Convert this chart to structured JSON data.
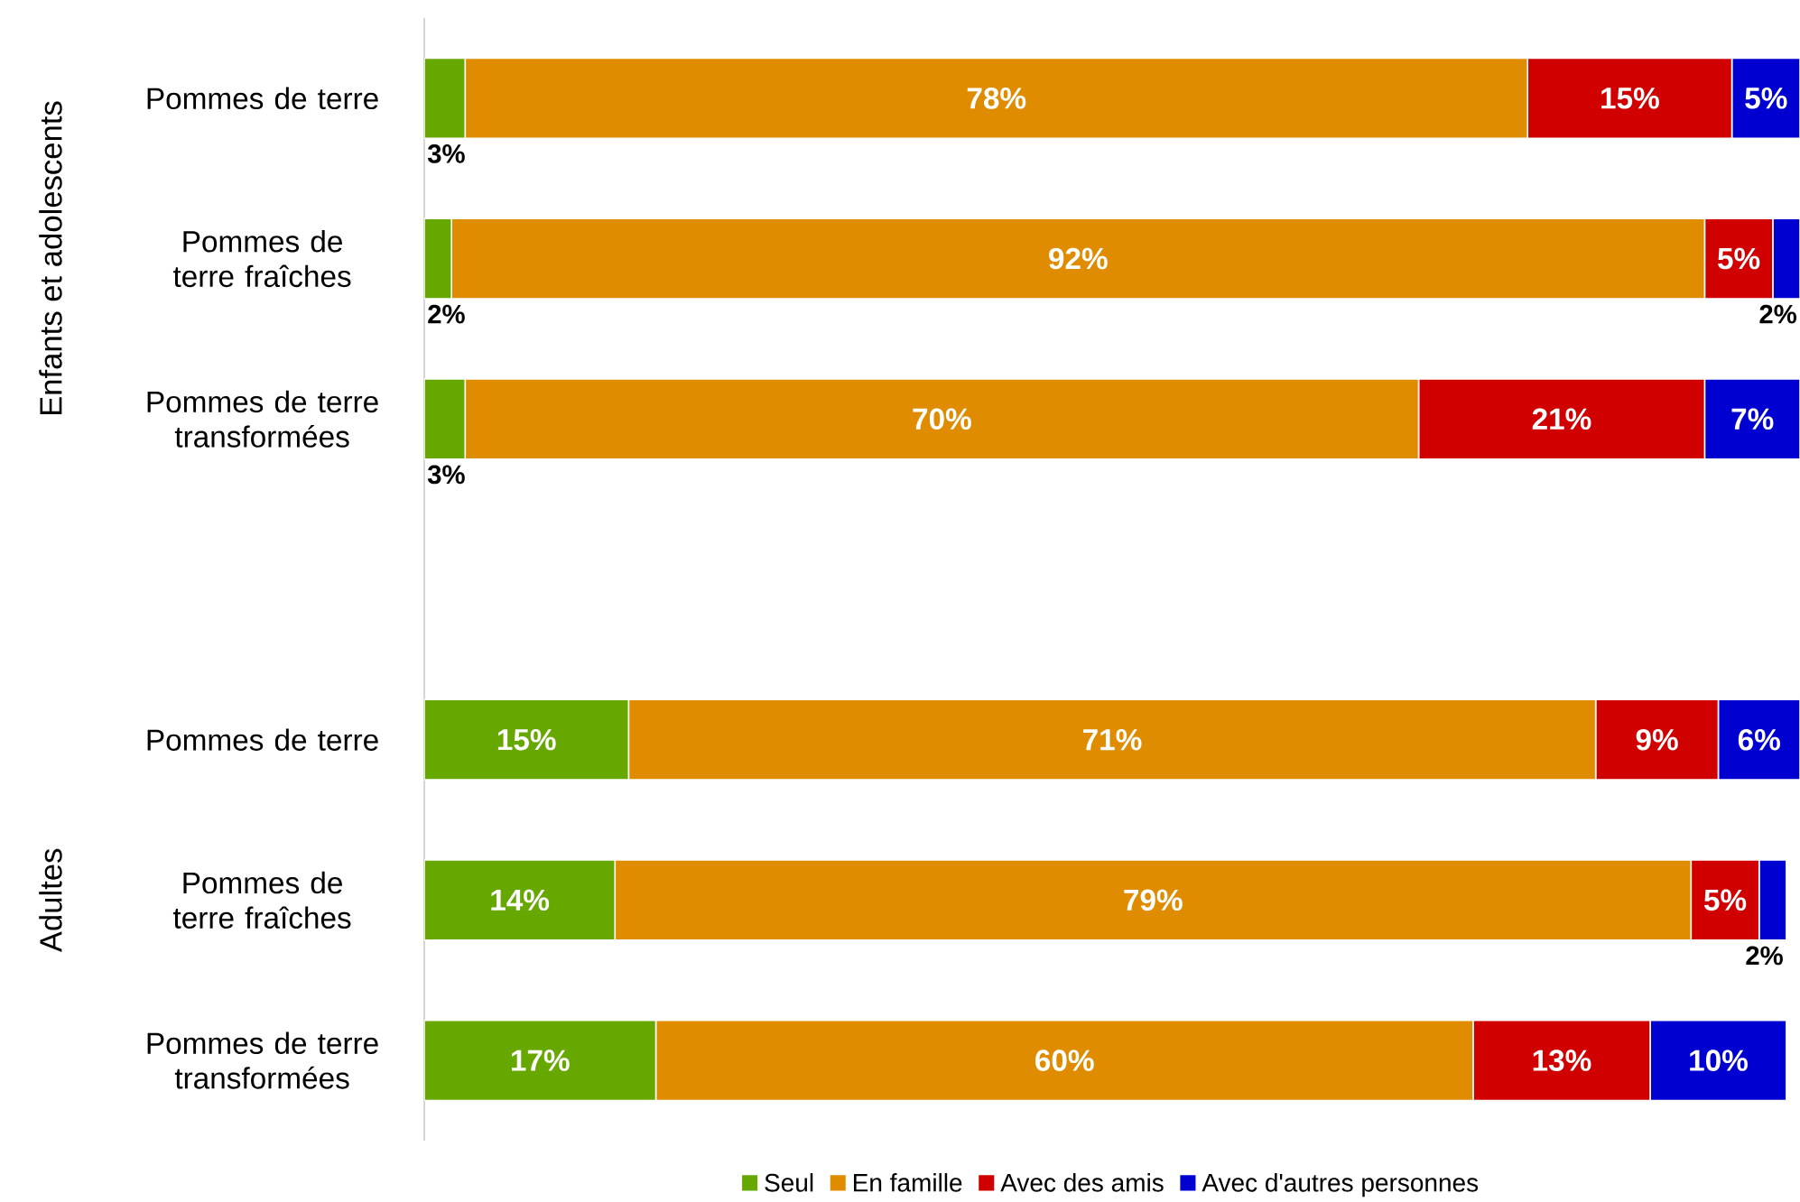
{
  "chart_data": {
    "type": "bar",
    "orientation": "horizontal",
    "stacked": true,
    "categories": [
      "Pommes de terre",
      "Pommes de terre fraîches",
      "Pommes de terre transformées",
      null,
      "Pommes de terre",
      "Pommes de terre fraîches",
      "Pommes de terre transformées"
    ],
    "series": [
      {
        "name": "Seul",
        "color": "#66a800",
        "values": [
          3,
          2,
          3,
          null,
          15,
          14,
          17
        ],
        "value_labels": [
          "3%",
          "2%",
          "3%",
          null,
          "15%",
          "14%",
          "17%"
        ]
      },
      {
        "name": "En famille",
        "color": "#e08c00",
        "values": [
          78,
          92,
          70,
          null,
          71,
          79,
          60
        ],
        "value_labels": [
          "78%",
          "92%",
          "70%",
          null,
          "71%",
          "79%",
          "60%"
        ]
      },
      {
        "name": "Avec des amis",
        "color": "#d00000",
        "values": [
          15,
          5,
          21,
          null,
          9,
          5,
          13
        ],
        "value_labels": [
          "15%",
          "5%",
          "21%",
          null,
          "9%",
          "5%",
          "13%"
        ]
      },
      {
        "name": "Avec d'autres personnes",
        "color": "#0000d0",
        "values": [
          5,
          2,
          7,
          null,
          6,
          2,
          10
        ],
        "value_labels": [
          "5%",
          "2%",
          "7%",
          null,
          "6%",
          "2%",
          "10%"
        ]
      }
    ],
    "annotations": [
      "Enfants et adolescents",
      "Adultes"
    ],
    "xlim": [
      0,
      101
    ],
    "tick_labels": "y",
    "legend": "bottom"
  }
}
